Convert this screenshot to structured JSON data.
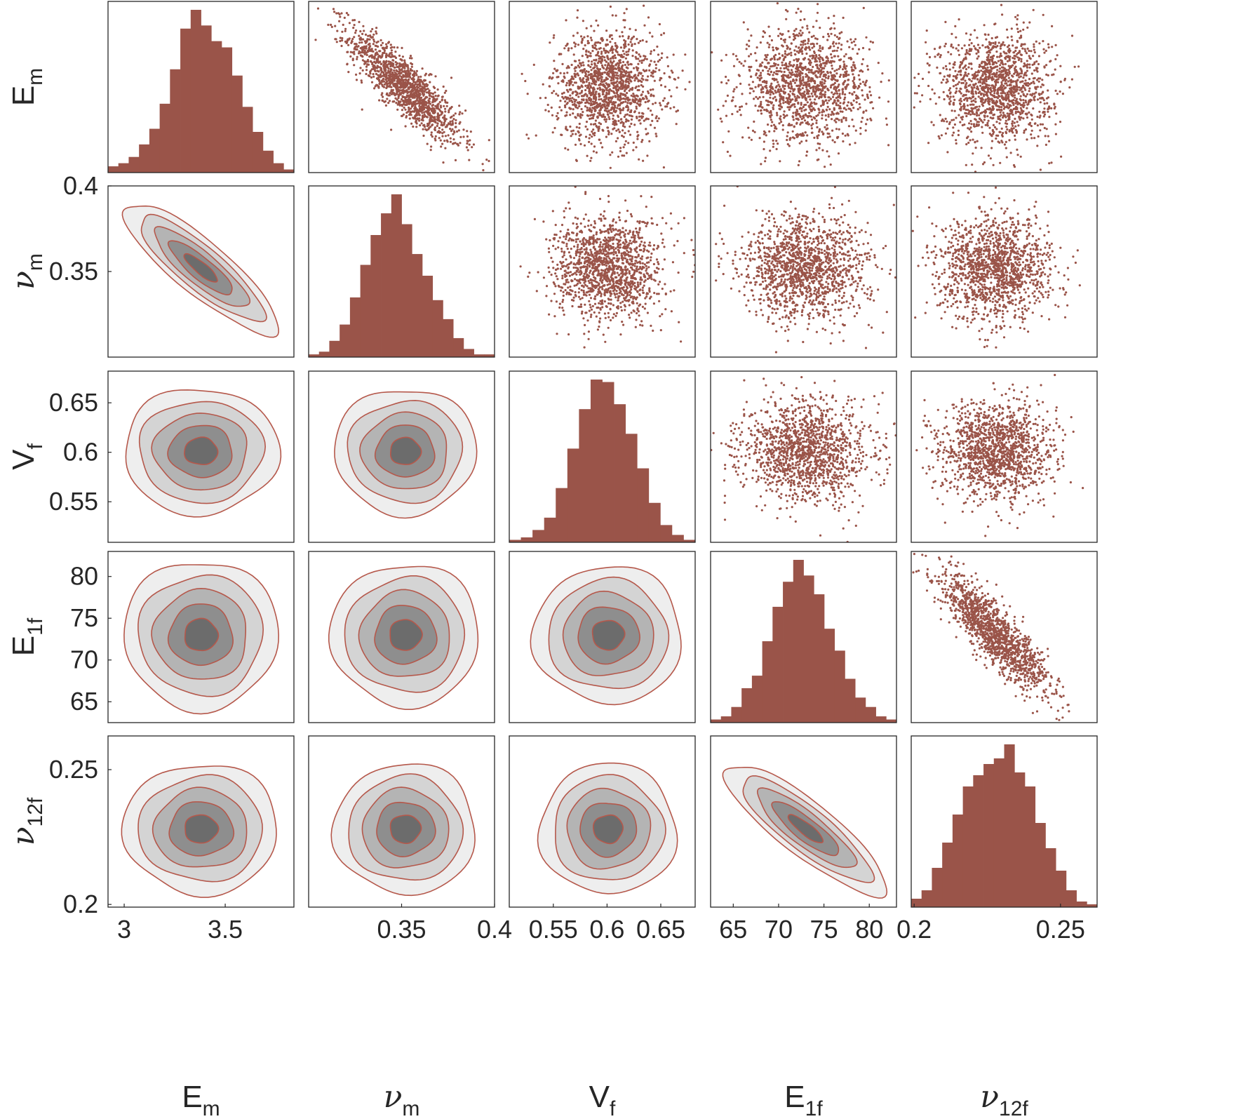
{
  "chart_data": {
    "type": "scatter-matrix",
    "title": "",
    "colors": {
      "mark": "#9a5449",
      "contour_line": "#b5584b",
      "frame": "#262626",
      "text": "#262626"
    },
    "contour_fills": [
      "#eeeeee",
      "#d4d4d4",
      "#b4b4b4",
      "#8e8e8e",
      "#6c6c6c"
    ],
    "variables": [
      {
        "key": "Em",
        "label": "E",
        "sub": "m",
        "greek": false,
        "lim": [
          2.92,
          3.84
        ],
        "mean": 3.38,
        "sd": 0.15,
        "ticks": [
          3,
          3.5
        ],
        "tick_labels": [
          "3",
          "3.5"
        ]
      },
      {
        "key": "num",
        "label": "ν",
        "sub": "m",
        "greek": true,
        "lim": [
          0.3,
          0.4
        ],
        "mean": 0.352,
        "sd": 0.015,
        "ticks": [
          0.35,
          0.4
        ],
        "tick_labels": [
          "0.35",
          "0.4"
        ]
      },
      {
        "key": "Vf",
        "label": "V",
        "sub": "f",
        "greek": false,
        "lim": [
          0.509,
          0.682
        ],
        "mean": 0.601,
        "sd": 0.025,
        "ticks": [
          0.55,
          0.6,
          0.65
        ],
        "tick_labels": [
          "0.55",
          "0.6",
          "0.65"
        ]
      },
      {
        "key": "E1f",
        "label": "E",
        "sub": "1f",
        "greek": false,
        "lim": [
          62.5,
          83
        ],
        "mean": 73,
        "sd": 3.5,
        "ticks": [
          65,
          70,
          75,
          80
        ],
        "tick_labels": [
          "65",
          "70",
          "75",
          "80"
        ]
      },
      {
        "key": "nu12f",
        "label": "ν",
        "sub": "12f",
        "greek": true,
        "lim": [
          0.199,
          0.2625
        ],
        "mean": 0.228,
        "sd": 0.0095,
        "ticks": [
          0.2,
          0.25
        ],
        "tick_labels": [
          "0.2",
          "0.25"
        ]
      }
    ],
    "row_labels": [
      {
        "label": "E",
        "sub": "m",
        "greek": false,
        "ticks": [],
        "tick_labels": []
      },
      {
        "label": "ν",
        "sub": "m",
        "greek": true,
        "ticks": [
          0.35,
          0.4
        ],
        "tick_labels": [
          "0.35",
          "0.4"
        ]
      },
      {
        "label": "V",
        "sub": "f",
        "greek": false,
        "ticks": [
          0.55,
          0.6,
          0.65
        ],
        "tick_labels": [
          "0.55",
          "0.6",
          "0.65"
        ]
      },
      {
        "label": "E",
        "sub": "1f",
        "greek": false,
        "ticks": [
          65,
          70,
          75,
          80
        ],
        "tick_labels": [
          "65",
          "70",
          "75",
          "80"
        ]
      },
      {
        "label": "ν",
        "sub": "12f",
        "greek": true,
        "ticks": [
          0.2,
          0.25
        ],
        "tick_labels": [
          "0.2",
          "0.25"
        ]
      }
    ],
    "correlations": [
      {
        "pair": [
          "Em",
          "num"
        ],
        "rho": -0.86
      },
      {
        "pair": [
          "E1f",
          "nu12f"
        ],
        "rho": -0.86
      }
    ],
    "histograms": [
      {
        "var": "Em",
        "counts": [
          2,
          3,
          5,
          9,
          14,
          22,
          33,
          46,
          52,
          47,
          42,
          40,
          31,
          21,
          13,
          7,
          3,
          1
        ]
      },
      {
        "var": "num",
        "counts": [
          1,
          2,
          6,
          12,
          22,
          34,
          45,
          53,
          60,
          49,
          38,
          30,
          21,
          14,
          7,
          3,
          1,
          1
        ]
      },
      {
        "var": "Vf",
        "counts": [
          1,
          2,
          5,
          10,
          22,
          38,
          54,
          66,
          65,
          56,
          44,
          30,
          16,
          7,
          3,
          1
        ]
      },
      {
        "var": "E1f",
        "counts": [
          1,
          2,
          5,
          11,
          15,
          26,
          37,
          45,
          52,
          47,
          41,
          30,
          23,
          14,
          8,
          5,
          2,
          1
        ]
      },
      {
        "var": "nu12f",
        "counts": [
          3,
          6,
          14,
          23,
          33,
          43,
          47,
          51,
          53,
          58,
          48,
          43,
          30,
          21,
          13,
          6,
          2,
          1
        ]
      }
    ],
    "scatter_points_per_panel": 1400,
    "contour_levels": 5
  }
}
